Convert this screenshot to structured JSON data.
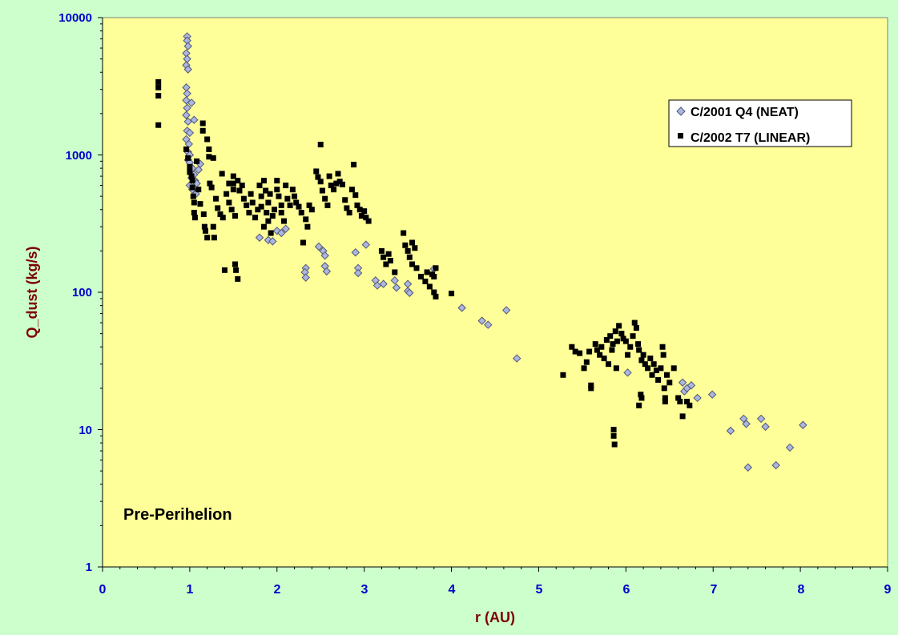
{
  "chart_data": {
    "type": "scatter",
    "title": "",
    "xlabel": "r (AU)",
    "ylabel": "Q_dust (kg/s)",
    "xlim": [
      0,
      9
    ],
    "ylim": [
      1,
      10000
    ],
    "yscale": "log",
    "x_ticks": [
      "0",
      "1",
      "2",
      "3",
      "4",
      "5",
      "6",
      "7",
      "8",
      "9"
    ],
    "y_ticks": [
      "1",
      "10",
      "100",
      "1000",
      "10000"
    ],
    "grid": false,
    "legend_position": "top-right",
    "annotation": "Pre-Perihelion",
    "colors": {
      "background": "#ccffcc",
      "plot_area": "#ffff99",
      "neat_fill": "#aab8e0",
      "neat_stroke": "#555577",
      "linear": "#000000",
      "tick_labels": "#0000cc",
      "axis_titles": "#800000"
    },
    "series": [
      {
        "name": "C/2001 Q4 (NEAT)",
        "marker": "diamond",
        "points": [
          [
            0.97,
            7300
          ],
          [
            0.97,
            6800
          ],
          [
            0.98,
            6200
          ],
          [
            0.96,
            5500
          ],
          [
            0.97,
            5000
          ],
          [
            0.96,
            4500
          ],
          [
            0.98,
            4200
          ],
          [
            0.96,
            3100
          ],
          [
            0.97,
            2800
          ],
          [
            0.96,
            2500
          ],
          [
            0.97,
            2200
          ],
          [
            0.96,
            1950
          ],
          [
            0.98,
            1750
          ],
          [
            0.97,
            1500
          ],
          [
            0.96,
            1300
          ],
          [
            0.99,
            1200
          ],
          [
            0.98,
            1050
          ],
          [
            1.0,
            1000
          ],
          [
            0.98,
            920
          ],
          [
            1.02,
            2400
          ],
          [
            1.0,
            1450
          ],
          [
            1.05,
            1800
          ],
          [
            1.0,
            880
          ],
          [
            1.03,
            800
          ],
          [
            1.05,
            720
          ],
          [
            1.02,
            680
          ],
          [
            1.06,
            650
          ],
          [
            1.08,
            620
          ],
          [
            1.1,
            780
          ],
          [
            1.03,
            560
          ],
          [
            1.07,
            520
          ],
          [
            1.12,
            860
          ],
          [
            1.0,
            600
          ],
          [
            1.8,
            250
          ],
          [
            1.9,
            240
          ],
          [
            1.95,
            235
          ],
          [
            2.0,
            280
          ],
          [
            2.05,
            270
          ],
          [
            2.1,
            290
          ],
          [
            2.33,
            150
          ],
          [
            2.32,
            140
          ],
          [
            2.33,
            128
          ],
          [
            2.48,
            215
          ],
          [
            2.53,
            200
          ],
          [
            2.55,
            185
          ],
          [
            2.55,
            155
          ],
          [
            2.57,
            142
          ],
          [
            2.9,
            195
          ],
          [
            2.93,
            150
          ],
          [
            2.93,
            138
          ],
          [
            3.02,
            222
          ],
          [
            3.13,
            122
          ],
          [
            3.15,
            112
          ],
          [
            3.22,
            115
          ],
          [
            3.35,
            122
          ],
          [
            3.37,
            108
          ],
          [
            3.5,
            115
          ],
          [
            3.5,
            102
          ],
          [
            3.52,
            99
          ],
          [
            3.8,
            148
          ],
          [
            4.12,
            77
          ],
          [
            4.35,
            62
          ],
          [
            4.42,
            58
          ],
          [
            4.63,
            74
          ],
          [
            4.75,
            33
          ],
          [
            6.02,
            26
          ],
          [
            6.65,
            22
          ],
          [
            6.67,
            19
          ],
          [
            6.7,
            20
          ],
          [
            6.75,
            21
          ],
          [
            6.82,
            17
          ],
          [
            6.99,
            18
          ],
          [
            7.2,
            9.8
          ],
          [
            7.35,
            12
          ],
          [
            7.38,
            11
          ],
          [
            7.4,
            5.3
          ],
          [
            7.55,
            12
          ],
          [
            7.6,
            10.5
          ],
          [
            7.72,
            5.5
          ],
          [
            7.88,
            7.4
          ],
          [
            8.03,
            10.8
          ]
        ]
      },
      {
        "name": "C/2002 T7 (LINEAR)",
        "marker": "square",
        "points": [
          [
            0.64,
            3400
          ],
          [
            0.64,
            3100
          ],
          [
            0.64,
            2700
          ],
          [
            0.64,
            1650
          ],
          [
            0.96,
            1100
          ],
          [
            0.98,
            950
          ],
          [
            1.0,
            820
          ],
          [
            1.0,
            750
          ],
          [
            1.02,
            700
          ],
          [
            1.03,
            650
          ],
          [
            1.03,
            580
          ],
          [
            1.04,
            500
          ],
          [
            1.05,
            450
          ],
          [
            1.05,
            380
          ],
          [
            1.06,
            350
          ],
          [
            1.08,
            900
          ],
          [
            1.1,
            560
          ],
          [
            1.12,
            440
          ],
          [
            1.15,
            1700
          ],
          [
            1.15,
            1500
          ],
          [
            1.16,
            370
          ],
          [
            1.17,
            300
          ],
          [
            1.18,
            280
          ],
          [
            1.2,
            250
          ],
          [
            1.2,
            1300
          ],
          [
            1.22,
            1100
          ],
          [
            1.22,
            970
          ],
          [
            1.23,
            620
          ],
          [
            1.25,
            580
          ],
          [
            1.27,
            950
          ],
          [
            1.27,
            300
          ],
          [
            1.28,
            250
          ],
          [
            1.3,
            480
          ],
          [
            1.32,
            410
          ],
          [
            1.35,
            370
          ],
          [
            1.37,
            730
          ],
          [
            1.38,
            350
          ],
          [
            1.4,
            145
          ],
          [
            1.42,
            520
          ],
          [
            1.45,
            620
          ],
          [
            1.45,
            450
          ],
          [
            1.48,
            400
          ],
          [
            1.5,
            700
          ],
          [
            1.5,
            620
          ],
          [
            1.5,
            560
          ],
          [
            1.52,
            360
          ],
          [
            1.52,
            160
          ],
          [
            1.53,
            145
          ],
          [
            1.55,
            125
          ],
          [
            1.55,
            650
          ],
          [
            1.57,
            550
          ],
          [
            1.6,
            600
          ],
          [
            1.62,
            480
          ],
          [
            1.65,
            430
          ],
          [
            1.68,
            380
          ],
          [
            1.7,
            520
          ],
          [
            1.72,
            450
          ],
          [
            1.75,
            350
          ],
          [
            1.78,
            400
          ],
          [
            1.8,
            600
          ],
          [
            1.82,
            500
          ],
          [
            1.82,
            420
          ],
          [
            1.85,
            300
          ],
          [
            1.85,
            650
          ],
          [
            1.87,
            550
          ],
          [
            1.88,
            380
          ],
          [
            1.9,
            330
          ],
          [
            1.9,
            450
          ],
          [
            1.92,
            520
          ],
          [
            1.93,
            270
          ],
          [
            1.95,
            360
          ],
          [
            1.97,
            400
          ],
          [
            2.0,
            650
          ],
          [
            2.0,
            560
          ],
          [
            2.02,
            500
          ],
          [
            2.05,
            430
          ],
          [
            2.05,
            380
          ],
          [
            2.08,
            330
          ],
          [
            2.1,
            600
          ],
          [
            2.12,
            480
          ],
          [
            2.15,
            430
          ],
          [
            2.18,
            560
          ],
          [
            2.2,
            500
          ],
          [
            2.22,
            450
          ],
          [
            2.25,
            420
          ],
          [
            2.28,
            380
          ],
          [
            2.3,
            230
          ],
          [
            2.33,
            340
          ],
          [
            2.35,
            300
          ],
          [
            2.37,
            430
          ],
          [
            2.4,
            400
          ],
          [
            2.45,
            760
          ],
          [
            2.47,
            690
          ],
          [
            2.5,
            1190
          ],
          [
            2.5,
            640
          ],
          [
            2.52,
            550
          ],
          [
            2.55,
            480
          ],
          [
            2.58,
            430
          ],
          [
            2.6,
            700
          ],
          [
            2.62,
            600
          ],
          [
            2.65,
            560
          ],
          [
            2.68,
            620
          ],
          [
            2.7,
            730
          ],
          [
            2.72,
            640
          ],
          [
            2.75,
            610
          ],
          [
            2.78,
            470
          ],
          [
            2.8,
            410
          ],
          [
            2.83,
            380
          ],
          [
            2.86,
            560
          ],
          [
            2.88,
            850
          ],
          [
            2.9,
            510
          ],
          [
            2.92,
            430
          ],
          [
            2.95,
            400
          ],
          [
            2.97,
            360
          ],
          [
            3.0,
            390
          ],
          [
            3.02,
            350
          ],
          [
            3.05,
            330
          ],
          [
            3.2,
            200
          ],
          [
            3.22,
            180
          ],
          [
            3.25,
            160
          ],
          [
            3.28,
            190
          ],
          [
            3.3,
            170
          ],
          [
            3.35,
            140
          ],
          [
            3.45,
            270
          ],
          [
            3.47,
            220
          ],
          [
            3.5,
            200
          ],
          [
            3.52,
            180
          ],
          [
            3.55,
            160
          ],
          [
            3.55,
            230
          ],
          [
            3.58,
            210
          ],
          [
            3.6,
            150
          ],
          [
            3.65,
            130
          ],
          [
            3.7,
            120
          ],
          [
            3.72,
            140
          ],
          [
            3.75,
            110
          ],
          [
            3.78,
            135
          ],
          [
            3.8,
            130
          ],
          [
            3.8,
            100
          ],
          [
            3.82,
            93
          ],
          [
            3.82,
            150
          ],
          [
            4.0,
            98
          ],
          [
            5.28,
            25
          ],
          [
            5.38,
            40
          ],
          [
            5.42,
            37
          ],
          [
            5.47,
            36
          ],
          [
            5.52,
            28
          ],
          [
            5.55,
            31
          ],
          [
            5.58,
            37
          ],
          [
            5.6,
            21
          ],
          [
            5.6,
            20
          ],
          [
            5.65,
            42
          ],
          [
            5.67,
            38
          ],
          [
            5.7,
            35
          ],
          [
            5.72,
            40
          ],
          [
            5.75,
            33
          ],
          [
            5.78,
            45
          ],
          [
            5.8,
            30
          ],
          [
            5.82,
            48
          ],
          [
            5.84,
            38
          ],
          [
            5.85,
            42
          ],
          [
            5.86,
            10
          ],
          [
            5.86,
            9
          ],
          [
            5.87,
            7.8
          ],
          [
            5.88,
            52
          ],
          [
            5.89,
            28
          ],
          [
            5.9,
            44
          ],
          [
            5.92,
            57
          ],
          [
            5.95,
            50
          ],
          [
            5.97,
            46
          ],
          [
            6.0,
            44
          ],
          [
            6.02,
            35
          ],
          [
            6.05,
            40
          ],
          [
            6.08,
            48
          ],
          [
            6.1,
            60
          ],
          [
            6.12,
            55
          ],
          [
            6.14,
            42
          ],
          [
            6.15,
            38
          ],
          [
            6.15,
            15
          ],
          [
            6.17,
            18
          ],
          [
            6.18,
            17
          ],
          [
            6.18,
            32
          ],
          [
            6.2,
            35
          ],
          [
            6.22,
            30
          ],
          [
            6.25,
            28
          ],
          [
            6.28,
            33
          ],
          [
            6.3,
            25
          ],
          [
            6.32,
            30
          ],
          [
            6.35,
            27
          ],
          [
            6.37,
            23
          ],
          [
            6.4,
            28
          ],
          [
            6.42,
            40
          ],
          [
            6.43,
            35
          ],
          [
            6.44,
            20
          ],
          [
            6.45,
            17
          ],
          [
            6.45,
            16
          ],
          [
            6.47,
            25
          ],
          [
            6.5,
            22
          ],
          [
            6.55,
            28
          ],
          [
            6.6,
            17
          ],
          [
            6.62,
            16
          ],
          [
            6.65,
            12.5
          ],
          [
            6.7,
            16
          ],
          [
            6.73,
            15
          ]
        ]
      }
    ]
  }
}
